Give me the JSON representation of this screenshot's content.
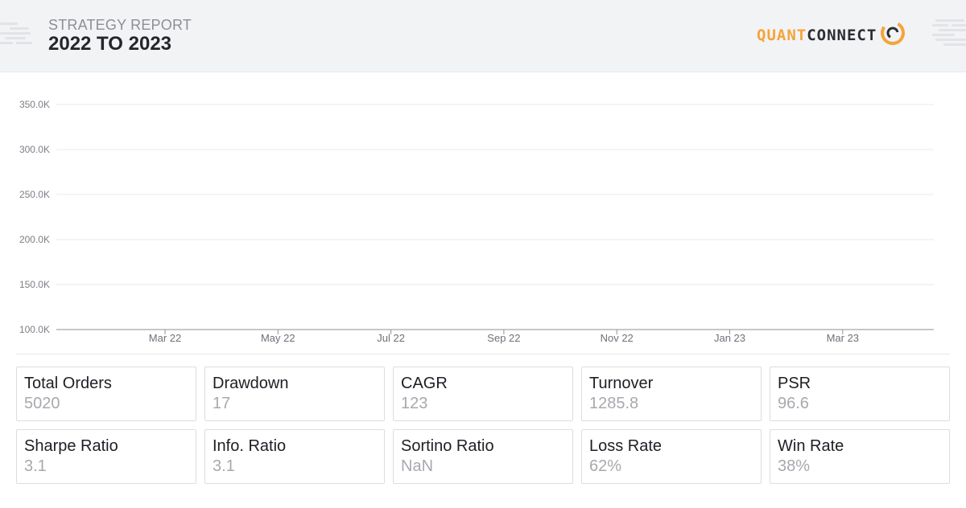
{
  "header": {
    "kicker": "STRATEGY REPORT",
    "title": "2022 TO 2023",
    "logo_left": "QUANT",
    "logo_right": "CONNECT",
    "accent_color": "#f5a43a"
  },
  "chart_data": {
    "type": "line",
    "title": "",
    "xlabel": "",
    "ylabel": "",
    "ylim": [
      100000,
      350000
    ],
    "y_ticks": [
      "350.0K",
      "300.0K",
      "250.0K",
      "200.0K",
      "150.0K",
      "100.0K"
    ],
    "x_ticks": [
      "Mar 22",
      "May 22",
      "Jul 22",
      "Sep 22",
      "Nov 22",
      "Jan 23",
      "Mar 23"
    ],
    "series": [],
    "grid": true
  },
  "stats": [
    {
      "label": "Total Orders",
      "value": "5020"
    },
    {
      "label": "Drawdown",
      "value": "17"
    },
    {
      "label": "CAGR",
      "value": "123"
    },
    {
      "label": "Turnover",
      "value": "1285.8"
    },
    {
      "label": "PSR",
      "value": "96.6"
    },
    {
      "label": "Sharpe Ratio",
      "value": "3.1"
    },
    {
      "label": "Info. Ratio",
      "value": "3.1"
    },
    {
      "label": "Sortino Ratio",
      "value": "NaN"
    },
    {
      "label": "Loss Rate",
      "value": "62%"
    },
    {
      "label": "Win Rate",
      "value": "38%"
    }
  ]
}
